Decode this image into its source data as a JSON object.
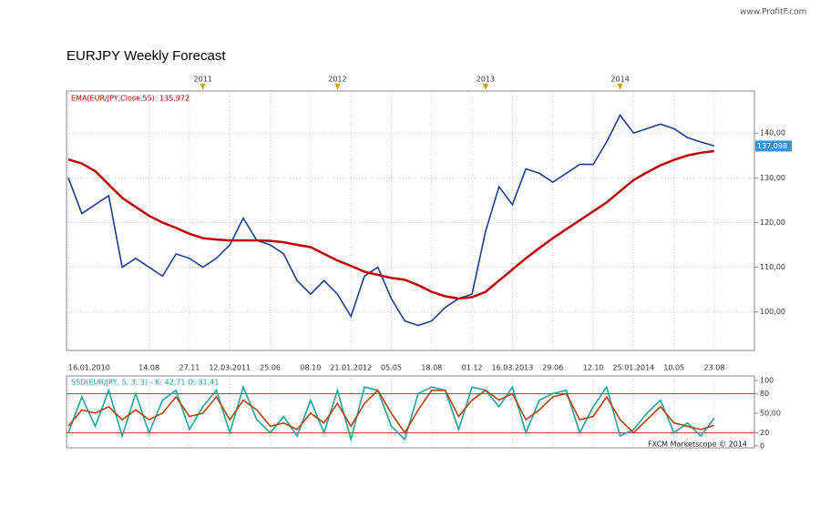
{
  "title": "EURJPY Weekly Forecast",
  "watermark": "www.ProfitF.com",
  "credit": "FXCM Marketscope © 2014",
  "chart_data": [
    {
      "type": "line",
      "categories": [
        "16.01.2010",
        null,
        null,
        null,
        null,
        null,
        "14.08",
        null,
        null,
        "27.11",
        null,
        null,
        "12.03.2011",
        null,
        null,
        "25.06",
        null,
        null,
        "08.10",
        null,
        null,
        "21.01.2012",
        null,
        null,
        "05.05",
        null,
        null,
        "18.08",
        null,
        null,
        "01.12",
        null,
        null,
        "16.03.2013",
        null,
        null,
        "29.06",
        null,
        null,
        "12.10",
        null,
        null,
        "25.01.2014",
        null,
        null,
        "10.05",
        null,
        null,
        "23.08"
      ],
      "year_markers": [
        null,
        null,
        null,
        null,
        null,
        null,
        null,
        null,
        null,
        null,
        "2011",
        null,
        null,
        null,
        null,
        null,
        null,
        null,
        null,
        null,
        "2012",
        null,
        null,
        null,
        null,
        null,
        null,
        null,
        null,
        null,
        null,
        "2013",
        null,
        null,
        null,
        null,
        null,
        null,
        null,
        null,
        null,
        "2014",
        null,
        null,
        null,
        null,
        null,
        null,
        null
      ],
      "series": [
        {
          "color": "#1f3d8a",
          "values": [
            130,
            122,
            124,
            126,
            110,
            112,
            110,
            108,
            113,
            112,
            110,
            112,
            115,
            121,
            116,
            115,
            113,
            107,
            104,
            107,
            104,
            99,
            108,
            110,
            103,
            98,
            97,
            98,
            101,
            103,
            104,
            118,
            128,
            124,
            132,
            131,
            129,
            131,
            133,
            133,
            138,
            144,
            140,
            141,
            142,
            141,
            139,
            138,
            137.098
          ]
        },
        {
          "name": "EMA(EUR/JPY,Close,55): 135,972",
          "color": "#c00000",
          "values": [
            134.1,
            133.2,
            131.5,
            128.5,
            125.5,
            123.5,
            121.5,
            120,
            118.8,
            117.5,
            116.5,
            116.2,
            116,
            116,
            116,
            115.9,
            115.6,
            115,
            114.5,
            113,
            111.5,
            110.3,
            109,
            108.3,
            107.6,
            107.2,
            106,
            104.5,
            103.5,
            103,
            103.3,
            104.5,
            107,
            109.5,
            112,
            114.3,
            116.5,
            118.5,
            120.5,
            122.5,
            124.5,
            127,
            129.5,
            131.2,
            132.8,
            134,
            135,
            135.6,
            135.972
          ]
        }
      ],
      "ylim": [
        91.4,
        149.4
      ],
      "yticks": [
        {
          "value": 100,
          "label": "100,00"
        },
        {
          "value": 110,
          "label": "110,00"
        },
        {
          "value": 120,
          "label": "120,00"
        },
        {
          "value": 130,
          "label": "130,00"
        },
        {
          "value": 140,
          "label": "140,00"
        }
      ],
      "grid": true,
      "current_price": 137.098,
      "current_price_label": "137,098"
    },
    {
      "type": "line",
      "title": "SSD(EUR/JPY, 5, 3, 3) - K: 42,71 D: 31,41",
      "series": [
        {
          "color": "#1aa39a",
          "values": [
            20,
            75,
            30,
            85,
            15,
            80,
            20,
            70,
            85,
            25,
            60,
            85,
            20,
            90,
            40,
            20,
            45,
            15,
            70,
            20,
            85,
            10,
            90,
            85,
            30,
            10,
            80,
            90,
            85,
            25,
            90,
            85,
            60,
            90,
            20,
            70,
            80,
            85,
            20,
            60,
            90,
            15,
            25,
            50,
            70,
            20,
            35,
            15,
            42.71
          ]
        },
        {
          "color": "#b5440e",
          "values": [
            30,
            55,
            50,
            60,
            40,
            55,
            40,
            50,
            75,
            45,
            50,
            75,
            40,
            70,
            55,
            30,
            35,
            25,
            50,
            35,
            65,
            30,
            65,
            85,
            50,
            20,
            55,
            85,
            85,
            45,
            70,
            85,
            70,
            80,
            40,
            55,
            75,
            80,
            40,
            45,
            75,
            40,
            20,
            40,
            60,
            35,
            30,
            25,
            31.41
          ]
        }
      ],
      "ylim": [
        -3,
        107
      ],
      "yticks": [
        100,
        80,
        {
          "value": 50,
          "label": "50,00"
        },
        20,
        0
      ],
      "levels": [
        80,
        20
      ],
      "level_color": "#c00000"
    }
  ]
}
